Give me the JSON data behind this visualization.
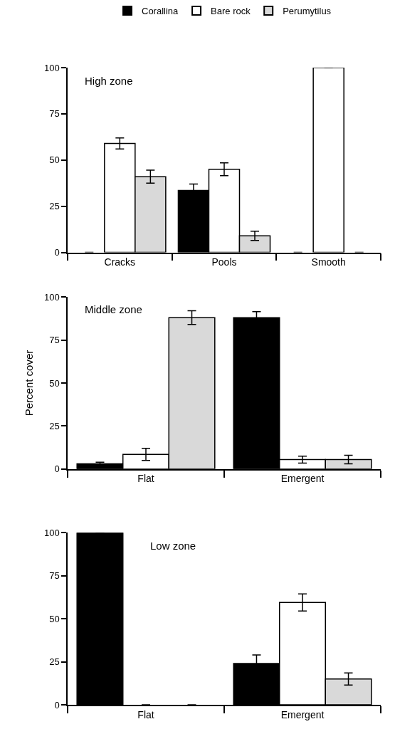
{
  "chart_data": [
    {
      "type": "bar",
      "title": "High zone",
      "categories": [
        "Cracks",
        "Pools",
        "Smooth"
      ],
      "ylim": [
        0,
        100
      ],
      "yticks": [
        0,
        25,
        50,
        75,
        100
      ],
      "legend": "top",
      "series": [
        {
          "name": "Corallina",
          "color": "#000000",
          "values": [
            0,
            33.5,
            0
          ],
          "errors": [
            null,
            3.5,
            null
          ]
        },
        {
          "name": "Bare rock",
          "color": "#ffffff",
          "values": [
            59,
            45,
            100
          ],
          "errors": [
            3,
            3.5,
            null
          ]
        },
        {
          "name": "Perumytilus",
          "color": "#d9d9d9",
          "values": [
            41,
            9,
            0
          ],
          "errors": [
            3.5,
            2.5,
            null
          ]
        }
      ]
    },
    {
      "type": "bar",
      "title": "Middle zone",
      "ylabel": "Percent cover",
      "categories": [
        "Flat",
        "Emergent"
      ],
      "ylim": [
        0,
        100
      ],
      "yticks": [
        0,
        25,
        50,
        75,
        100
      ],
      "series": [
        {
          "color": "#000000",
          "values": [
            3,
            88
          ],
          "errors": [
            1,
            3.5
          ]
        },
        {
          "color": "#ffffff",
          "values": [
            8.5,
            5.5
          ],
          "errors": [
            3.5,
            2
          ]
        },
        {
          "color": "#d9d9d9",
          "values": [
            88,
            5.5
          ],
          "errors": [
            4,
            2.5
          ]
        }
      ]
    },
    {
      "type": "bar",
      "title": "Low zone",
      "categories": [
        "Flat",
        "Emergent"
      ],
      "ylim": [
        0,
        100
      ],
      "yticks": [
        0,
        25,
        50,
        75,
        100
      ],
      "series": [
        {
          "color": "#000000",
          "values": [
            100,
            24
          ],
          "errors": [
            null,
            5
          ]
        },
        {
          "color": "#ffffff",
          "values": [
            0,
            59.5
          ],
          "errors": [
            null,
            5
          ]
        },
        {
          "color": "#d9d9d9",
          "values": [
            0,
            15
          ],
          "errors": [
            null,
            3.5
          ]
        }
      ]
    }
  ]
}
